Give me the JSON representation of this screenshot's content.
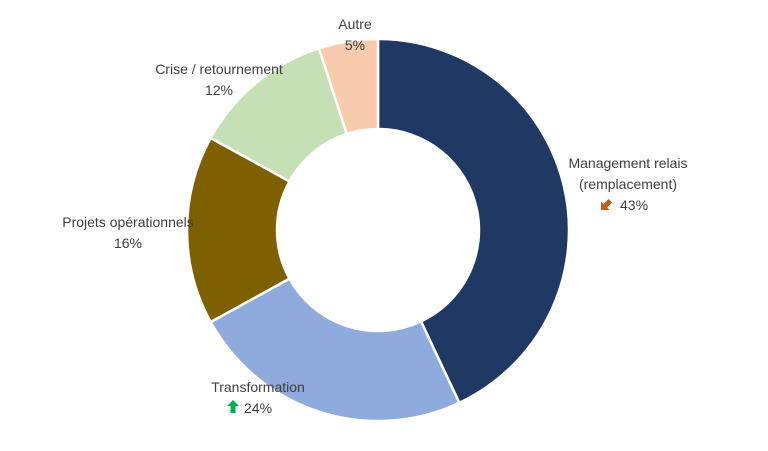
{
  "chart_data": {
    "type": "pie",
    "style": "donut",
    "slices": [
      {
        "label": "Management relais (remplacement)",
        "value": 43,
        "value_label": "43%",
        "color": "#1f3864",
        "trend": "down",
        "trend_color": "#c55a11"
      },
      {
        "label": "Transformation",
        "value": 24,
        "value_label": "24%",
        "color": "#8faadc",
        "trend": "up",
        "trend_color": "#00b050"
      },
      {
        "label": "Projets opérationnels",
        "value": 16,
        "value_label": "16%",
        "color": "#7f6000"
      },
      {
        "label": "Crise / retournement",
        "value": 12,
        "value_label": "12%",
        "color": "#c5e0b4"
      },
      {
        "label": "Autre",
        "value": 5,
        "value_label": "5%",
        "color": "#f8cbad"
      }
    ],
    "legend": "none"
  }
}
